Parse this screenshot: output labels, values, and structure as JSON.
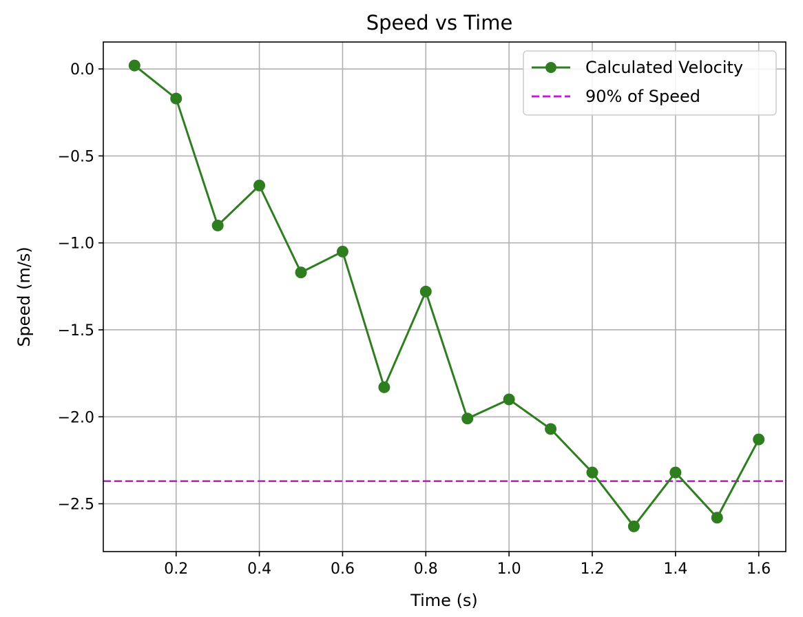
{
  "chart_data": {
    "type": "line",
    "title": "Speed vs Time",
    "xlabel": "Time (s)",
    "ylabel": "Speed (m/s)",
    "xlim": [
      0.025,
      1.665
    ],
    "ylim": [
      -2.775,
      0.155
    ],
    "xticks": [
      0.2,
      0.4,
      0.6,
      0.8,
      1.0,
      1.2,
      1.4,
      1.6
    ],
    "xtick_labels": [
      "0.2",
      "0.4",
      "0.6",
      "0.8",
      "1.0",
      "1.2",
      "1.4",
      "1.6"
    ],
    "yticks": [
      0.0,
      -0.5,
      -1.0,
      -1.5,
      -2.0,
      -2.5
    ],
    "ytick_labels": [
      "0.0",
      "−0.5",
      "−1.0",
      "−1.5",
      "−2.0",
      "−2.5"
    ],
    "grid": true,
    "legend_position": "upper right",
    "series": [
      {
        "name": "Calculated Velocity",
        "style": "solid line with circle markers",
        "color": "#2e7d1f",
        "x": [
          0.1,
          0.2,
          0.3,
          0.4,
          0.5,
          0.6,
          0.7,
          0.8,
          0.9,
          1.0,
          1.1,
          1.2,
          1.3,
          1.4,
          1.5,
          1.6
        ],
        "y": [
          0.02,
          -0.17,
          -0.9,
          -0.67,
          -1.17,
          -1.05,
          -1.83,
          -1.28,
          -2.01,
          -1.9,
          -2.07,
          -2.32,
          -2.63,
          -2.32,
          -2.58,
          -2.13
        ]
      },
      {
        "name": "90% of Speed",
        "style": "dashed horizontal line",
        "color": "#bf1fce",
        "y": -2.37
      }
    ]
  }
}
